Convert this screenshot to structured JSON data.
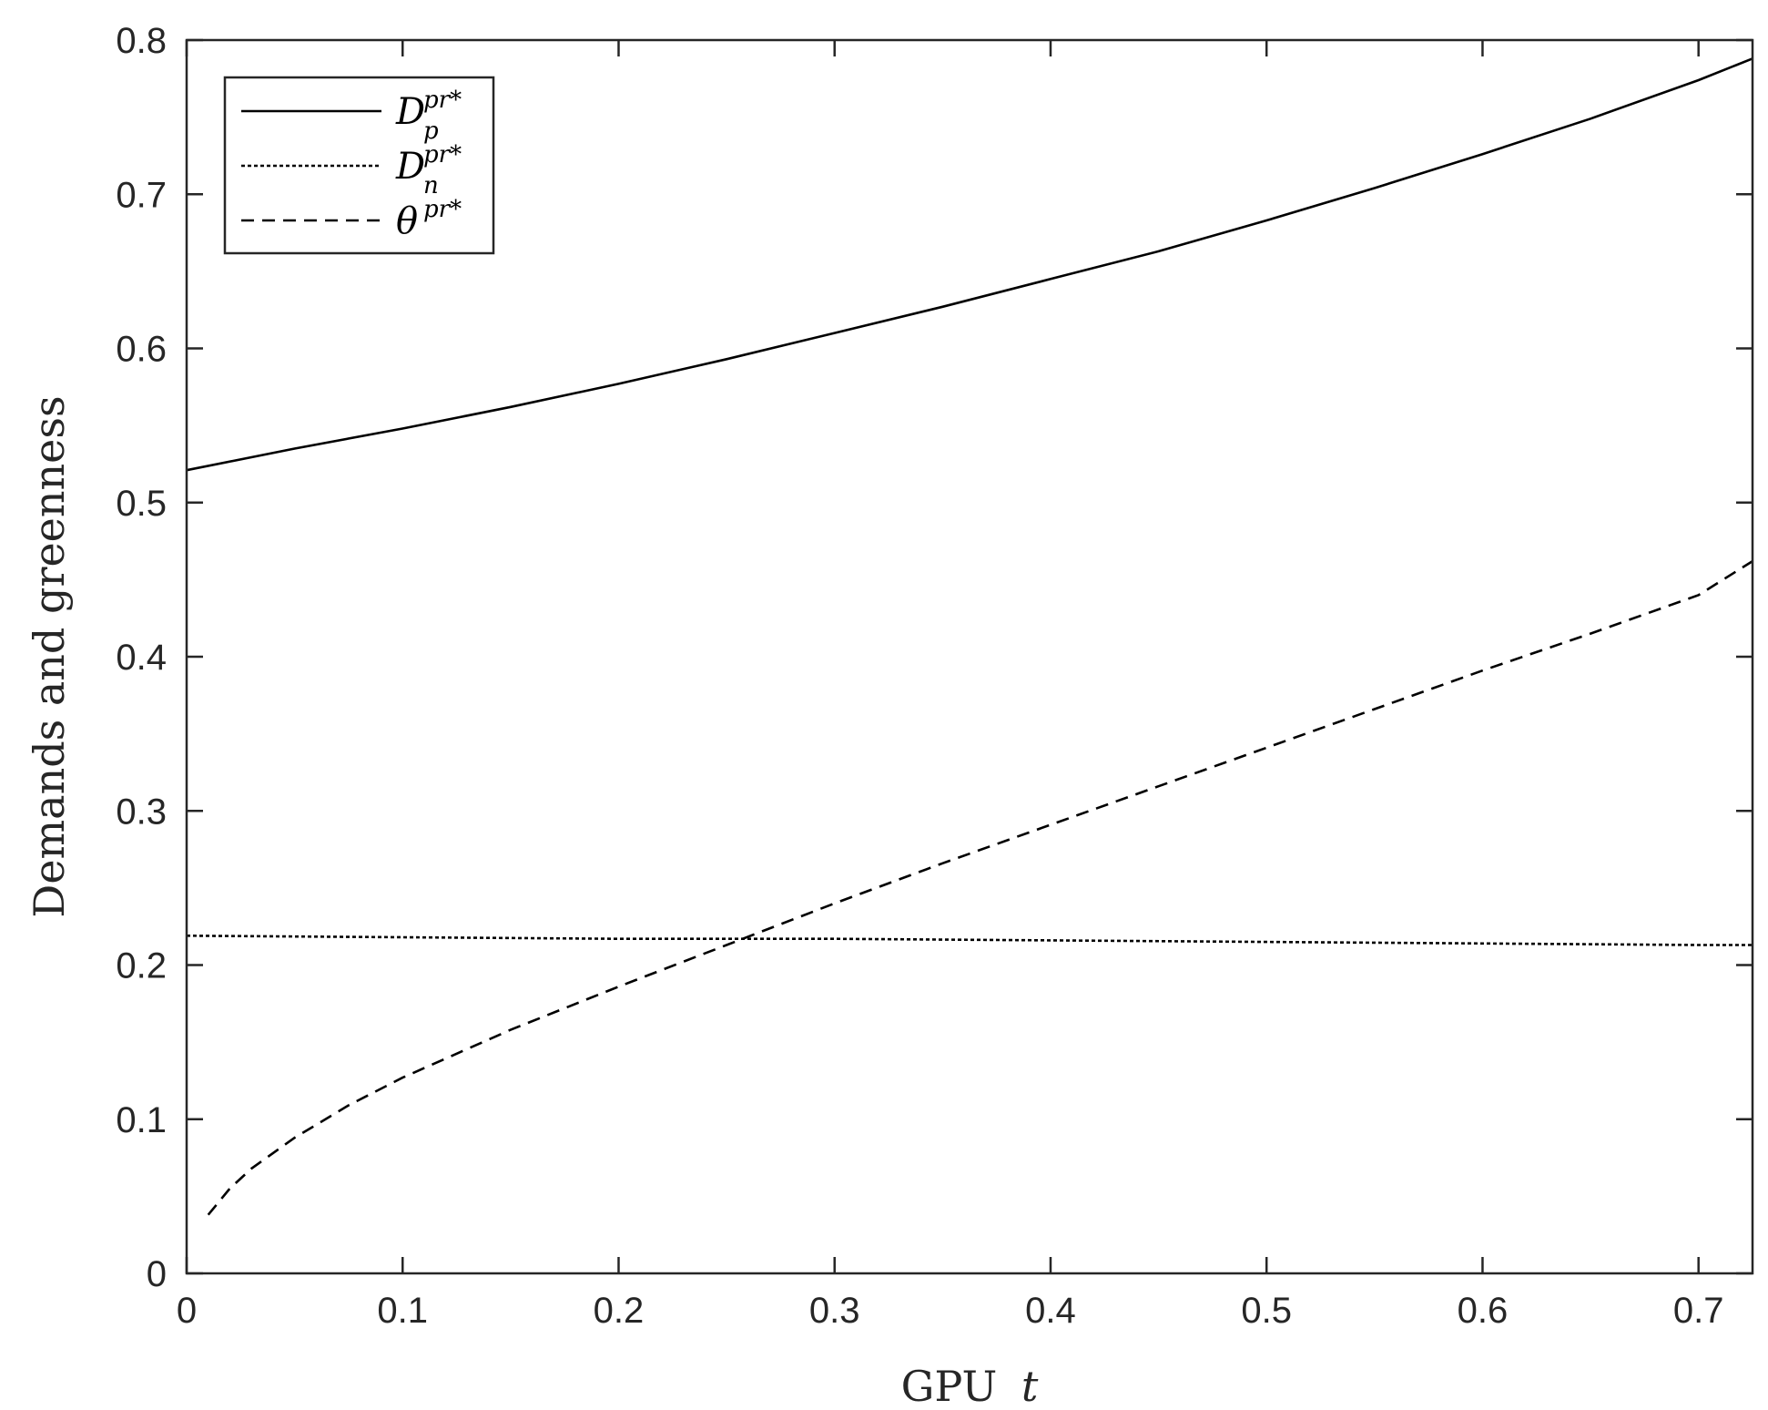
{
  "chart_data": {
    "type": "line",
    "title": "",
    "xlabel": "GPU",
    "xlabel_var": "t",
    "ylabel": "Demands and greenness",
    "xlim": [
      0,
      0.725
    ],
    "ylim": [
      0,
      0.8
    ],
    "xticks": [
      0,
      0.1,
      0.2,
      0.3,
      0.4,
      0.5,
      0.6,
      0.7
    ],
    "xtick_labels": [
      "0",
      "0.1",
      "0.2",
      "0.3",
      "0.4",
      "0.5",
      "0.6",
      "0.7"
    ],
    "yticks": [
      0,
      0.1,
      0.2,
      0.3,
      0.4,
      0.5,
      0.6,
      0.7,
      0.8
    ],
    "ytick_labels": [
      "0",
      "0.1",
      "0.2",
      "0.3",
      "0.4",
      "0.5",
      "0.6",
      "0.7",
      "0.8"
    ],
    "grid": false,
    "legend_position": "top-left",
    "series": [
      {
        "name": "D",
        "sub": "p",
        "sup": "pr*",
        "style": "solid",
        "x": [
          0,
          0.05,
          0.1,
          0.15,
          0.2,
          0.25,
          0.3,
          0.35,
          0.4,
          0.45,
          0.5,
          0.55,
          0.6,
          0.65,
          0.7,
          0.725
        ],
        "values": [
          0.521,
          0.535,
          0.548,
          0.562,
          0.577,
          0.593,
          0.61,
          0.627,
          0.645,
          0.663,
          0.683,
          0.704,
          0.726,
          0.749,
          0.774,
          0.788
        ]
      },
      {
        "name": "D",
        "sub": "n",
        "sup": "pr*",
        "style": "dashdot",
        "x": [
          0,
          0.1,
          0.2,
          0.3,
          0.4,
          0.5,
          0.6,
          0.7,
          0.725
        ],
        "values": [
          0.219,
          0.218,
          0.217,
          0.217,
          0.216,
          0.215,
          0.214,
          0.213,
          0.213
        ]
      },
      {
        "name": "θ",
        "sub": "",
        "sup": "pr*",
        "style": "dashed",
        "x": [
          0.01,
          0.02,
          0.03,
          0.05,
          0.075,
          0.1,
          0.15,
          0.2,
          0.25,
          0.3,
          0.35,
          0.4,
          0.45,
          0.5,
          0.55,
          0.6,
          0.65,
          0.7,
          0.725
        ],
        "values": [
          0.038,
          0.055,
          0.068,
          0.088,
          0.109,
          0.127,
          0.158,
          0.186,
          0.213,
          0.24,
          0.266,
          0.291,
          0.316,
          0.341,
          0.366,
          0.391,
          0.415,
          0.44,
          0.462
        ]
      }
    ]
  }
}
